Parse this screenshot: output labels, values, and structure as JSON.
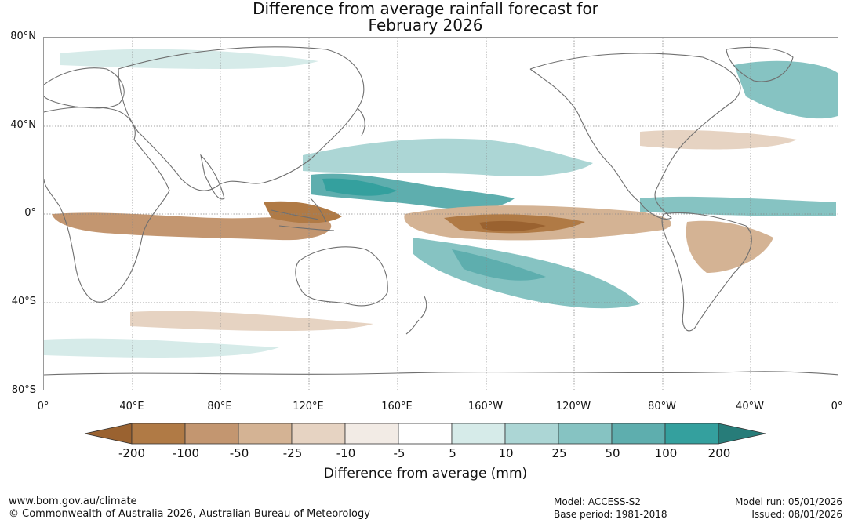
{
  "title": {
    "line1": "Difference from average rainfall forecast for",
    "line2": "February 2026"
  },
  "latitude_labels": [
    "80°N",
    "40°N",
    "0°",
    "40°S",
    "80°S"
  ],
  "longitude_labels": [
    "0°",
    "40°E",
    "80°E",
    "120°E",
    "160°E",
    "160°W",
    "120°W",
    "80°W",
    "40°W",
    "0°"
  ],
  "colorbar": {
    "title": "Difference from average (mm)",
    "tick_labels": [
      "-200",
      "-100",
      "-50",
      "-25",
      "-10",
      "-5",
      "5",
      "10",
      "25",
      "50",
      "100",
      "200"
    ],
    "colors": [
      "#9a6230",
      "#b07a45",
      "#c39670",
      "#d4b394",
      "#e6d3c2",
      "#f2ebe5",
      "#ffffff",
      "#d6ebe9",
      "#acd6d5",
      "#86c3c2",
      "#5eaeae",
      "#34a09e",
      "#277c79"
    ]
  },
  "colors": {
    "ocean": "#ffffff",
    "land_outline": "#6f6f6f",
    "grid": "#888888"
  },
  "footer": {
    "url": "www.bom.gov.au/climate",
    "copyright": "© Commonwealth of Australia 2026, Australian Bureau of Meteorology",
    "model": "Model: ACCESS-S2",
    "base_period": "Base period: 1981-2018",
    "model_run": "Model run: 05/01/2026",
    "issued": "Issued: 08/01/2026"
  }
}
